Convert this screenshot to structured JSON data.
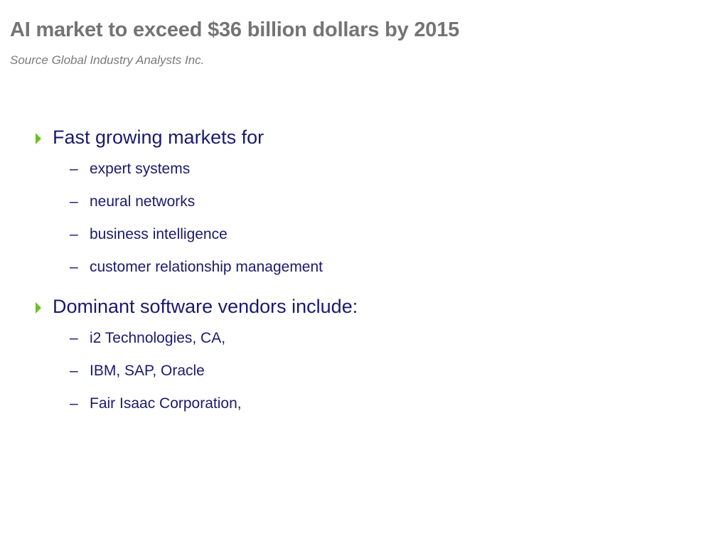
{
  "slide": {
    "title": "AI market to exceed $36 billion dollars by 2015",
    "subtitle": "Source Global Industry Analysts Inc.",
    "accent_color": "#6cbf2a",
    "text_color": "#1a1a6e",
    "title_color": "#747474",
    "bullets": [
      {
        "label": "Fast growing markets for",
        "marker": "triangle-bullet-icon",
        "subitems": [
          {
            "dash": "–",
            "label": "expert systems"
          },
          {
            "dash": "–",
            "label": "neural networks"
          },
          {
            "dash": "–",
            "label": "business intelligence"
          },
          {
            "dash": "–",
            "label": "customer relationship management"
          }
        ]
      },
      {
        "label": "Dominant software vendors include:",
        "marker": "triangle-bullet-icon",
        "subitems": [
          {
            "dash": "–",
            "label": "i2 Technologies, CA,"
          },
          {
            "dash": "–",
            "label": "IBM, SAP, Oracle"
          },
          {
            "dash": "–",
            "label": "Fair Isaac Corporation,"
          }
        ]
      }
    ]
  }
}
